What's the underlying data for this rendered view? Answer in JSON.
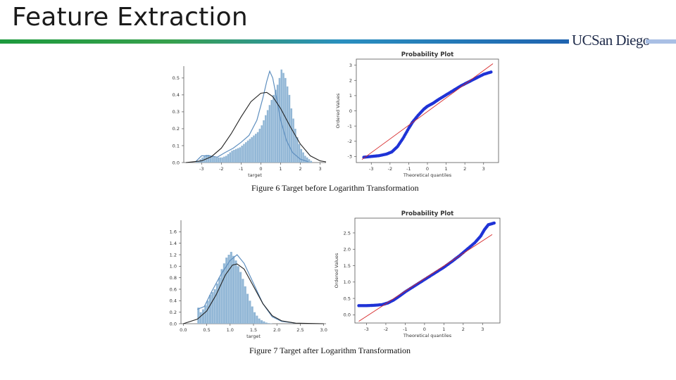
{
  "slide": {
    "title": "Feature Extraction",
    "logo": "UCSan Diego",
    "caption1": "Figure 6 Target before Logarithm Transformation",
    "caption2": "Figure 7 Target after Logarithm Transformation"
  },
  "colors": {
    "hist_fill": "#92b7d6",
    "kde_line": "#5f8fbf",
    "fit_line": "#222222",
    "qq_points": "#1f33d6",
    "qq_line": "#d62728"
  },
  "chart_data": [
    {
      "type": "bar",
      "id": "hist-before",
      "title": "",
      "xlabel": "target",
      "ylabel": "",
      "xlim": [
        -3.9,
        3.3
      ],
      "ylim": [
        0,
        0.57
      ],
      "xticks": [
        "-3",
        "-2",
        "-1",
        "0",
        "1",
        "2",
        "3"
      ],
      "yticks": [
        "0.0",
        "0.1",
        "0.2",
        "0.3",
        "0.4",
        "0.5"
      ],
      "bin_start": -3.3,
      "bin_width": 0.1,
      "values": [
        0.005,
        0.01,
        0.02,
        0.03,
        0.04,
        0.045,
        0.045,
        0.04,
        0.035,
        0.035,
        0.03,
        0.03,
        0.03,
        0.03,
        0.035,
        0.04,
        0.05,
        0.06,
        0.07,
        0.075,
        0.08,
        0.085,
        0.09,
        0.1,
        0.11,
        0.12,
        0.13,
        0.14,
        0.15,
        0.16,
        0.17,
        0.18,
        0.2,
        0.22,
        0.25,
        0.28,
        0.31,
        0.34,
        0.37,
        0.4,
        0.43,
        0.46,
        0.5,
        0.55,
        0.53,
        0.5,
        0.45,
        0.4,
        0.32,
        0.26,
        0.2,
        0.15,
        0.11,
        0.08,
        0.06,
        0.04,
        0.03,
        0.02,
        0.01
      ],
      "kde": [
        [
          -3.3,
          0.005
        ],
        [
          -3.0,
          0.04
        ],
        [
          -2.6,
          0.04
        ],
        [
          -2.2,
          0.032
        ],
        [
          -1.8,
          0.06
        ],
        [
          -1.4,
          0.085
        ],
        [
          -1.0,
          0.12
        ],
        [
          -0.6,
          0.16
        ],
        [
          -0.2,
          0.25
        ],
        [
          0.1,
          0.38
        ],
        [
          0.3,
          0.48
        ],
        [
          0.45,
          0.54
        ],
        [
          0.6,
          0.5
        ],
        [
          0.8,
          0.38
        ],
        [
          1.0,
          0.25
        ],
        [
          1.3,
          0.13
        ],
        [
          1.6,
          0.06
        ],
        [
          2.0,
          0.02
        ],
        [
          2.4,
          0.005
        ]
      ],
      "fit": [
        [
          -3.8,
          0.0
        ],
        [
          -3.0,
          0.01
        ],
        [
          -2.5,
          0.035
        ],
        [
          -2.0,
          0.085
        ],
        [
          -1.5,
          0.17
        ],
        [
          -1.0,
          0.27
        ],
        [
          -0.5,
          0.36
        ],
        [
          0.0,
          0.41
        ],
        [
          0.3,
          0.415
        ],
        [
          0.6,
          0.39
        ],
        [
          1.0,
          0.32
        ],
        [
          1.5,
          0.21
        ],
        [
          2.0,
          0.11
        ],
        [
          2.5,
          0.04
        ],
        [
          3.0,
          0.01
        ],
        [
          3.3,
          0.004
        ]
      ]
    },
    {
      "type": "scatter",
      "id": "qq-before",
      "title": "Probability Plot",
      "xlabel": "Theoretical quantiles",
      "ylabel": "Ordered Values",
      "xlim": [
        -3.8,
        3.8
      ],
      "ylim": [
        -3.4,
        3.4
      ],
      "xticks": [
        "-3",
        "-2",
        "-1",
        "0",
        "1",
        "2",
        "3"
      ],
      "yticks": [
        "-3",
        "-2",
        "-1",
        "0",
        "1",
        "2",
        "3"
      ],
      "points": [
        [
          -3.4,
          -3.05
        ],
        [
          -3.0,
          -3.0
        ],
        [
          -2.6,
          -2.95
        ],
        [
          -2.2,
          -2.85
        ],
        [
          -1.9,
          -2.7
        ],
        [
          -1.6,
          -2.35
        ],
        [
          -1.3,
          -1.8
        ],
        [
          -1.0,
          -1.15
        ],
        [
          -0.8,
          -0.75
        ],
        [
          -0.5,
          -0.3
        ],
        [
          -0.2,
          0.1
        ],
        [
          0.0,
          0.3
        ],
        [
          0.3,
          0.5
        ],
        [
          0.6,
          0.75
        ],
        [
          1.0,
          1.05
        ],
        [
          1.4,
          1.35
        ],
        [
          1.8,
          1.65
        ],
        [
          2.2,
          1.9
        ],
        [
          2.6,
          2.15
        ],
        [
          3.0,
          2.4
        ],
        [
          3.4,
          2.55
        ]
      ],
      "line": [
        [
          -3.5,
          -3.2
        ],
        [
          3.5,
          3.1
        ]
      ]
    },
    {
      "type": "bar",
      "id": "hist-after",
      "title": "",
      "xlabel": "target",
      "ylabel": "",
      "xlim": [
        -0.05,
        3.05
      ],
      "ylim": [
        0,
        1.8
      ],
      "xticks": [
        "0.0",
        "0.5",
        "1.0",
        "1.5",
        "2.0",
        "2.5",
        "3.0"
      ],
      "yticks": [
        "0.0",
        "0.2",
        "0.4",
        "0.6",
        "0.8",
        "1.0",
        "1.2",
        "1.4",
        "1.6"
      ],
      "bin_start": 0.3,
      "bin_width": 0.05,
      "values": [
        0.28,
        0.2,
        0.25,
        0.32,
        0.4,
        0.5,
        0.55,
        0.6,
        0.7,
        0.8,
        0.95,
        1.05,
        1.15,
        1.2,
        1.25,
        1.18,
        1.1,
        1.0,
        0.9,
        0.78,
        0.65,
        0.52,
        0.4,
        0.3,
        0.2,
        0.14,
        0.09,
        0.06,
        0.04,
        0.02,
        0.01,
        0.005
      ],
      "kde": [
        [
          0.3,
          0.25
        ],
        [
          0.45,
          0.3
        ],
        [
          0.6,
          0.55
        ],
        [
          0.8,
          0.85
        ],
        [
          1.0,
          1.1
        ],
        [
          1.15,
          1.2
        ],
        [
          1.3,
          1.05
        ],
        [
          1.5,
          0.7
        ],
        [
          1.7,
          0.35
        ],
        [
          1.9,
          0.12
        ],
        [
          2.1,
          0.04
        ],
        [
          2.4,
          0.01
        ]
      ],
      "fit": [
        [
          0.0,
          0.0
        ],
        [
          0.3,
          0.08
        ],
        [
          0.5,
          0.22
        ],
        [
          0.7,
          0.5
        ],
        [
          0.9,
          0.85
        ],
        [
          1.05,
          1.02
        ],
        [
          1.15,
          1.04
        ],
        [
          1.3,
          0.95
        ],
        [
          1.5,
          0.65
        ],
        [
          1.7,
          0.35
        ],
        [
          1.9,
          0.14
        ],
        [
          2.1,
          0.05
        ],
        [
          2.4,
          0.01
        ],
        [
          3.0,
          0.0
        ]
      ]
    },
    {
      "type": "scatter",
      "id": "qq-after",
      "title": "Probability Plot",
      "xlabel": "Theoretical quantiles",
      "ylabel": "Ordered Values",
      "xlim": [
        -3.6,
        3.9
      ],
      "ylim": [
        -0.25,
        2.95
      ],
      "xticks": [
        "-3",
        "-2",
        "-1",
        "0",
        "1",
        "2",
        "3"
      ],
      "yticks": [
        "0.0",
        "0.5",
        "1.0",
        "1.5",
        "2.0",
        "2.5"
      ],
      "points": [
        [
          -3.4,
          0.28
        ],
        [
          -3.0,
          0.28
        ],
        [
          -2.6,
          0.29
        ],
        [
          -2.2,
          0.31
        ],
        [
          -1.9,
          0.36
        ],
        [
          -1.6,
          0.45
        ],
        [
          -1.3,
          0.57
        ],
        [
          -1.0,
          0.7
        ],
        [
          -0.6,
          0.85
        ],
        [
          -0.2,
          1.0
        ],
        [
          0.2,
          1.15
        ],
        [
          0.6,
          1.3
        ],
        [
          1.0,
          1.45
        ],
        [
          1.4,
          1.62
        ],
        [
          1.8,
          1.8
        ],
        [
          2.2,
          2.0
        ],
        [
          2.6,
          2.2
        ],
        [
          2.9,
          2.4
        ],
        [
          3.1,
          2.6
        ],
        [
          3.3,
          2.75
        ],
        [
          3.6,
          2.8
        ]
      ],
      "line": [
        [
          -3.4,
          -0.2
        ],
        [
          3.5,
          2.45
        ]
      ]
    }
  ]
}
